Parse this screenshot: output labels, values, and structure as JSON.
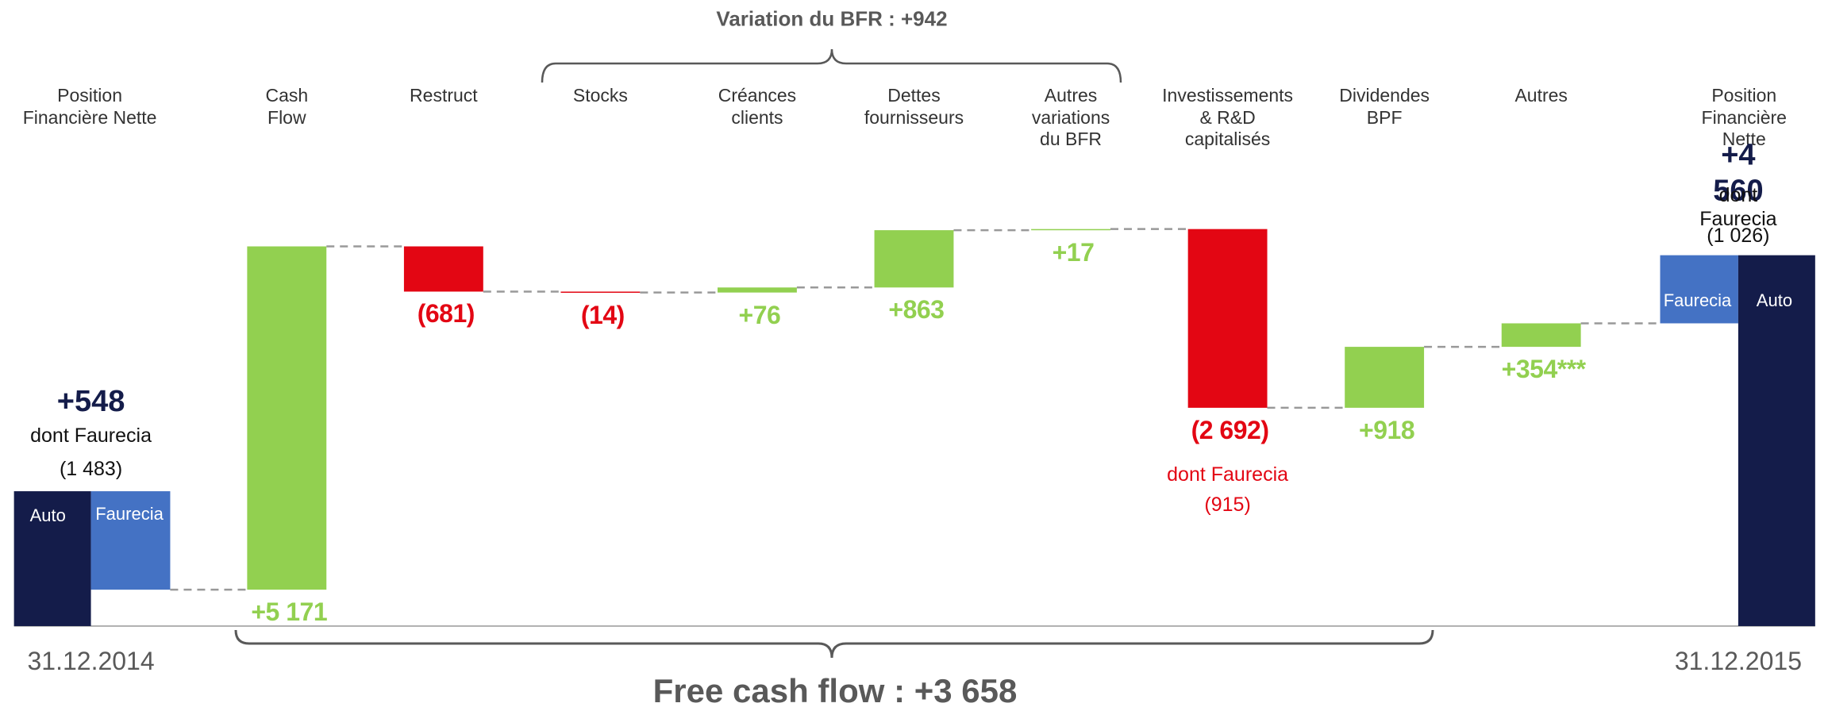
{
  "chart_data": {
    "type": "waterfall",
    "top_annotation": "Variation du BFR : +942",
    "bottom_annotation": "Free cash flow : +3 658",
    "ylim": [
      0,
      6000
    ],
    "colors": {
      "up": "#92d050",
      "down": "#e30613",
      "auto": "#141c4a",
      "faurecia": "#4472c4",
      "total_text": "#141c4a"
    },
    "start": {
      "label": "Position\nFinancière Nette",
      "date": "31.12.2014",
      "total": 548,
      "total_label": "+548",
      "sub_label": "dont Faurecia",
      "auto_name": "Auto",
      "faurecia_name": "Faurecia",
      "auto": 2031,
      "faurecia": -1483,
      "faurecia_label": "(1 483)"
    },
    "categories": [
      "Cash\nFlow",
      "Restruct",
      "Stocks",
      "Créances\nclients",
      "Dettes\nfournisseurs",
      "Autres\nvariations\ndu BFR",
      "Investissements\n& R&D\ncapitalisés",
      "Dividendes\nBPF",
      "Autres"
    ],
    "values": [
      5171,
      -681,
      -14,
      76,
      863,
      17,
      -2692,
      918,
      354
    ],
    "value_labels": [
      "+5 171",
      "(681)",
      "(14)",
      "+76",
      "+863",
      "+17",
      "(2 692)",
      "+918",
      "+354***"
    ],
    "invest_note": {
      "label": "dont Faurecia",
      "value": -915,
      "value_label": "(915)"
    },
    "end": {
      "label": "Position\nFinancière Nette",
      "date": "31.12.2015",
      "total": 4560,
      "total_label": "+4 560",
      "sub_label": "dont Faurecia",
      "auto_name": "Auto",
      "faurecia_name": "Faurecia",
      "auto": 5586,
      "faurecia": -1026,
      "faurecia_label": "(1 026)"
    }
  }
}
